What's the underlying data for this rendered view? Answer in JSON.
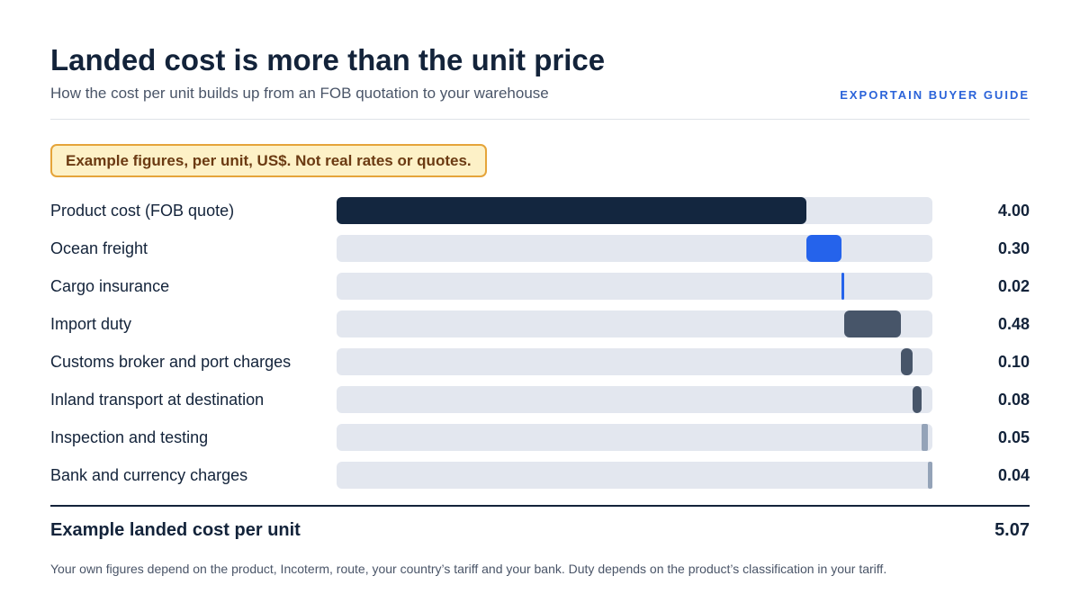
{
  "header": {
    "title": "Landed cost is more than the unit price",
    "subtitle": "How the cost per unit builds up from an FOB quotation to your warehouse",
    "brand": "EXPORTAIN BUYER GUIDE"
  },
  "note": "Example figures, per unit, US$. Not real rates or quotes.",
  "chart_data": {
    "type": "bar",
    "subtype": "stacked-waterfall",
    "categories": [
      "Product cost (FOB quote)",
      "Ocean freight",
      "Cargo insurance",
      "Import duty",
      "Customs broker and port charges",
      "Inland transport at destination",
      "Inspection and testing",
      "Bank and currency charges"
    ],
    "values": [
      4.0,
      0.3,
      0.02,
      0.48,
      0.1,
      0.08,
      0.05,
      0.04
    ],
    "value_labels": [
      "4.00",
      "0.30",
      "0.02",
      "0.48",
      "0.10",
      "0.08",
      "0.05",
      "0.04"
    ],
    "colors": [
      "#13263f",
      "#2563eb",
      "#2563eb",
      "#475569",
      "#475569",
      "#475569",
      "#94a3b8",
      "#94a3b8"
    ],
    "track_color": "#e3e7ef",
    "xlim": [
      0,
      5.07
    ],
    "total": 5.07
  },
  "total": {
    "label": "Example landed cost per unit",
    "value": "5.07"
  },
  "footnote": "Your own figures depend on the product, Incoterm, route, your country’s tariff and your bank. Duty depends on the product’s classification in your tariff."
}
